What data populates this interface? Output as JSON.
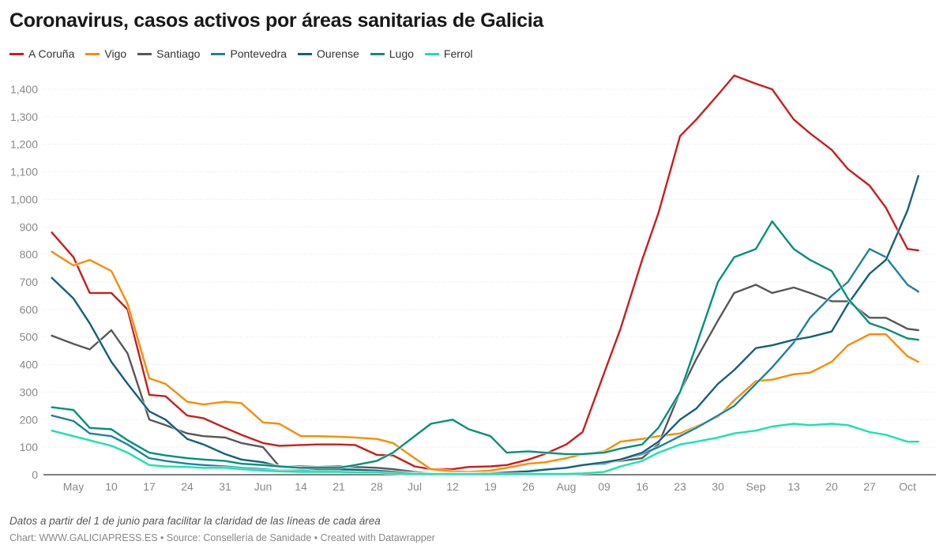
{
  "title": "Coronavirus, casos activos por áreas sanitarias de Galicia",
  "note": "Datos a partir del 1 de junio para facilitar la claridad de las líneas de cada área",
  "credit": "Chart: WWW.GALICIAPRESS.ES • Source: Consellería de Sanidade • Created with Datawrapper",
  "chart_data": {
    "type": "line",
    "title": "Coronavirus, casos activos por áreas sanitarias de Galicia",
    "xlabel": "",
    "ylabel": "",
    "ylim": [
      0,
      1400
    ],
    "yticks": [
      0,
      100,
      200,
      300,
      400,
      500,
      600,
      700,
      800,
      900,
      1000,
      1100,
      1200,
      1300,
      1400
    ],
    "ytick_labels": [
      "0",
      "100",
      "200",
      "300",
      "400",
      "500",
      "600",
      "700",
      "800",
      "900",
      "1,000",
      "1,100",
      "1,200",
      "1,300",
      "1,400"
    ],
    "xticks": [
      {
        "date": "05-03",
        "label": "May"
      },
      {
        "date": "05-10",
        "label": "10"
      },
      {
        "date": "05-17",
        "label": "17"
      },
      {
        "date": "05-24",
        "label": "24"
      },
      {
        "date": "05-31",
        "label": "31"
      },
      {
        "date": "06-07",
        "label": "Jun"
      },
      {
        "date": "06-14",
        "label": "14"
      },
      {
        "date": "06-21",
        "label": "21"
      },
      {
        "date": "06-28",
        "label": "28"
      },
      {
        "date": "07-05",
        "label": "Jul"
      },
      {
        "date": "07-12",
        "label": "12"
      },
      {
        "date": "07-19",
        "label": "19"
      },
      {
        "date": "07-26",
        "label": "26"
      },
      {
        "date": "08-02",
        "label": "Aug"
      },
      {
        "date": "08-09",
        "label": "09"
      },
      {
        "date": "08-16",
        "label": "16"
      },
      {
        "date": "08-23",
        "label": "23"
      },
      {
        "date": "08-30",
        "label": "30"
      },
      {
        "date": "09-06",
        "label": "Sep"
      },
      {
        "date": "09-13",
        "label": "13"
      },
      {
        "date": "09-20",
        "label": "20"
      },
      {
        "date": "09-27",
        "label": "27"
      },
      {
        "date": "10-04",
        "label": "Oct"
      }
    ],
    "grid": true,
    "legend": "top-left",
    "x": [
      "04-29",
      "05-03",
      "05-06",
      "05-10",
      "05-13",
      "05-17",
      "05-20",
      "05-24",
      "05-27",
      "05-31",
      "06-03",
      "06-07",
      "06-10",
      "06-14",
      "06-17",
      "06-21",
      "06-24",
      "06-28",
      "07-01",
      "07-05",
      "07-08",
      "07-12",
      "07-15",
      "07-19",
      "07-22",
      "07-26",
      "07-29",
      "08-02",
      "08-05",
      "08-09",
      "08-12",
      "08-16",
      "08-19",
      "08-23",
      "08-26",
      "08-30",
      "09-02",
      "09-06",
      "09-09",
      "09-13",
      "09-16",
      "09-20",
      "09-23",
      "09-27",
      "09-30",
      "10-04",
      "10-06"
    ],
    "series": [
      {
        "name": "A Coruña",
        "color": "#c71e1d",
        "values": [
          880,
          790,
          660,
          660,
          600,
          290,
          285,
          215,
          205,
          170,
          145,
          115,
          105,
          108,
          110,
          110,
          108,
          72,
          70,
          30,
          20,
          20,
          28,
          30,
          35,
          55,
          75,
          110,
          155,
          370,
          530,
          780,
          950,
          1230,
          1290,
          1380,
          1450,
          1420,
          1400,
          1290,
          1240,
          1180,
          1110,
          1050,
          970,
          820,
          815
        ]
      },
      {
        "name": "Vigo",
        "color": "#fa8c00",
        "values": [
          810,
          760,
          780,
          740,
          620,
          350,
          330,
          265,
          255,
          265,
          260,
          190,
          185,
          140,
          140,
          138,
          135,
          130,
          115,
          60,
          20,
          12,
          10,
          15,
          25,
          40,
          45,
          60,
          75,
          85,
          120,
          130,
          140,
          150,
          175,
          210,
          270,
          340,
          345,
          365,
          370,
          410,
          470,
          510,
          510,
          430,
          410
        ]
      },
      {
        "name": "Santiago",
        "color": "#575757",
        "values": [
          505,
          475,
          455,
          525,
          440,
          200,
          180,
          150,
          140,
          135,
          115,
          100,
          30,
          30,
          28,
          30,
          28,
          25,
          20,
          10,
          5,
          5,
          5,
          5,
          10,
          15,
          20,
          25,
          35,
          45,
          50,
          60,
          110,
          300,
          420,
          560,
          660,
          690,
          660,
          680,
          660,
          630,
          630,
          570,
          570,
          530,
          525
        ]
      },
      {
        "name": "Pontevedra",
        "color": "#1d81a2",
        "values": [
          215,
          195,
          150,
          140,
          110,
          60,
          50,
          40,
          35,
          30,
          25,
          20,
          15,
          15,
          15,
          15,
          15,
          10,
          8,
          5,
          3,
          3,
          3,
          5,
          8,
          12,
          18,
          25,
          35,
          40,
          55,
          75,
          100,
          140,
          170,
          215,
          250,
          330,
          390,
          480,
          570,
          650,
          700,
          820,
          790,
          690,
          665
        ]
      },
      {
        "name": "Ourense",
        "color": "#15607a",
        "values": [
          715,
          640,
          550,
          410,
          330,
          230,
          200,
          130,
          110,
          75,
          55,
          45,
          30,
          25,
          20,
          20,
          18,
          15,
          10,
          5,
          3,
          3,
          3,
          5,
          8,
          12,
          18,
          25,
          35,
          45,
          55,
          80,
          120,
          200,
          240,
          330,
          380,
          460,
          470,
          490,
          500,
          520,
          620,
          730,
          780,
          960,
          1085
        ]
      },
      {
        "name": "Lugo",
        "color": "#00907a",
        "values": [
          245,
          235,
          170,
          165,
          125,
          80,
          70,
          60,
          55,
          50,
          40,
          35,
          30,
          25,
          25,
          25,
          35,
          50,
          80,
          140,
          185,
          200,
          165,
          140,
          80,
          85,
          80,
          75,
          75,
          80,
          95,
          110,
          170,
          300,
          470,
          700,
          790,
          820,
          920,
          820,
          780,
          740,
          640,
          550,
          530,
          495,
          490
        ]
      },
      {
        "name": "Ferrol",
        "color": "#18e3b0",
        "values": [
          160,
          140,
          125,
          105,
          80,
          35,
          30,
          28,
          25,
          25,
          20,
          15,
          12,
          10,
          10,
          10,
          8,
          8,
          5,
          3,
          2,
          2,
          2,
          2,
          2,
          3,
          3,
          3,
          5,
          10,
          30,
          50,
          80,
          110,
          120,
          135,
          150,
          160,
          175,
          185,
          180,
          185,
          180,
          155,
          145,
          120,
          120
        ]
      }
    ]
  }
}
